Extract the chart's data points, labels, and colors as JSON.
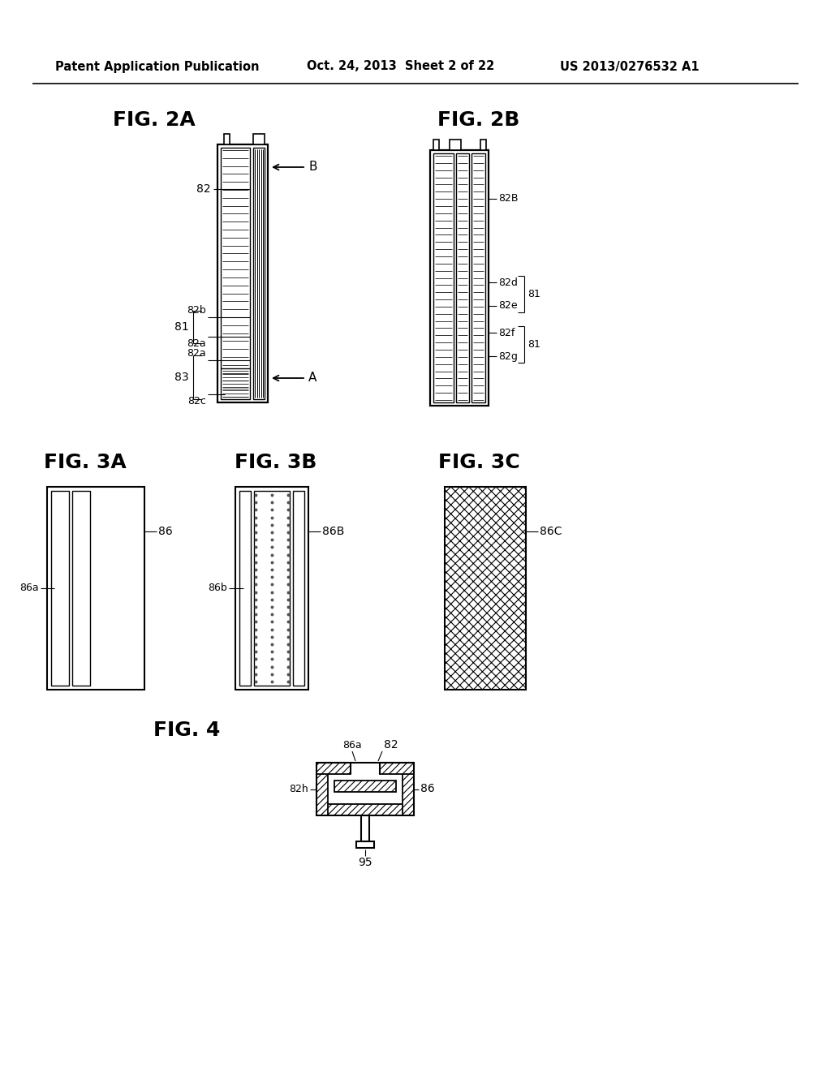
{
  "bg_color": "#ffffff",
  "header_left": "Patent Application Publication",
  "header_mid": "Oct. 24, 2013  Sheet 2 of 22",
  "header_right": "US 2013/0276532 A1"
}
